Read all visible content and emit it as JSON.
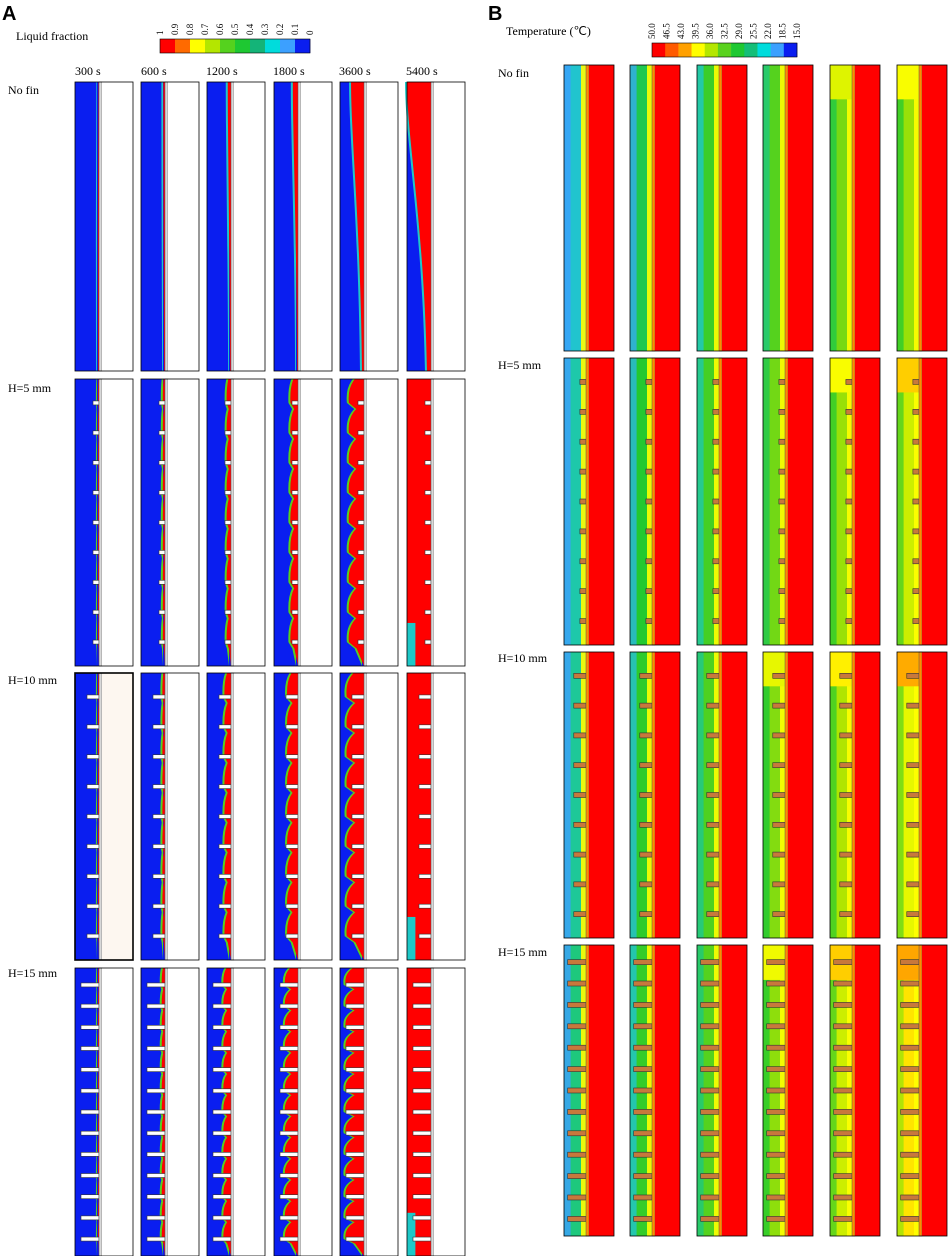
{
  "panels": [
    {
      "letter": "A",
      "legend_title": "Liquid fraction",
      "legend_ticks": [
        "1",
        "0.9",
        "0.8",
        "0.7",
        "0.6",
        "0.5",
        "0.4",
        "0.3",
        "0.2",
        "0.1",
        "0"
      ],
      "legend_colors": [
        "#ff0000",
        "#ff6a00",
        "#ffff00",
        "#b4e600",
        "#55d21e",
        "#1ec832",
        "#14b478",
        "#00dcdc",
        "#3ca0ff",
        "#0a1ef0"
      ],
      "time_labels": [
        "300 s",
        "600 s",
        "1200 s",
        "1800 s",
        "3600 s",
        "5400 s"
      ],
      "row_labels": [
        "No fin",
        "H=5 mm",
        "H=10 mm",
        "H=15 mm"
      ]
    },
    {
      "letter": "B",
      "legend_title": "Temperature (℃)",
      "legend_ticks": [
        "50.0",
        "46.5",
        "43.0",
        "39.5",
        "36.0",
        "32.5",
        "29.0",
        "25.5",
        "22.0",
        "18.5",
        "15.0"
      ],
      "legend_colors": [
        "#ff0000",
        "#ff5a00",
        "#ffa000",
        "#ffff00",
        "#b4e600",
        "#5ad21e",
        "#1ec832",
        "#14be78",
        "#00dcdc",
        "#3ca0ff",
        "#0a1ef0"
      ],
      "row_labels": [
        "No fin",
        "H=5 mm",
        "H=10 mm",
        "H=15 mm"
      ]
    }
  ],
  "rows": [
    {
      "fin_height_mm": 0,
      "fin_count": 0
    },
    {
      "fin_height_mm": 5,
      "fin_count": 9
    },
    {
      "fin_height_mm": 10,
      "fin_count": 9
    },
    {
      "fin_height_mm": 15,
      "fin_count": 13
    }
  ],
  "liquid_fraction_melt": [
    [
      0.02,
      0.05,
      0.1,
      0.16,
      0.4,
      0.8
    ],
    [
      0.05,
      0.1,
      0.2,
      0.35,
      0.7,
      0.95
    ],
    [
      0.05,
      0.12,
      0.3,
      0.5,
      0.8,
      0.95
    ],
    [
      0.05,
      0.15,
      0.35,
      0.6,
      0.85,
      1.0
    ]
  ],
  "temperature_level": [
    [
      0.15,
      0.3,
      0.42,
      0.5,
      0.56,
      0.62
    ],
    [
      0.2,
      0.35,
      0.45,
      0.55,
      0.62,
      0.72
    ],
    [
      0.22,
      0.38,
      0.48,
      0.58,
      0.66,
      0.78
    ],
    [
      0.25,
      0.4,
      0.5,
      0.6,
      0.72,
      0.88
    ]
  ]
}
